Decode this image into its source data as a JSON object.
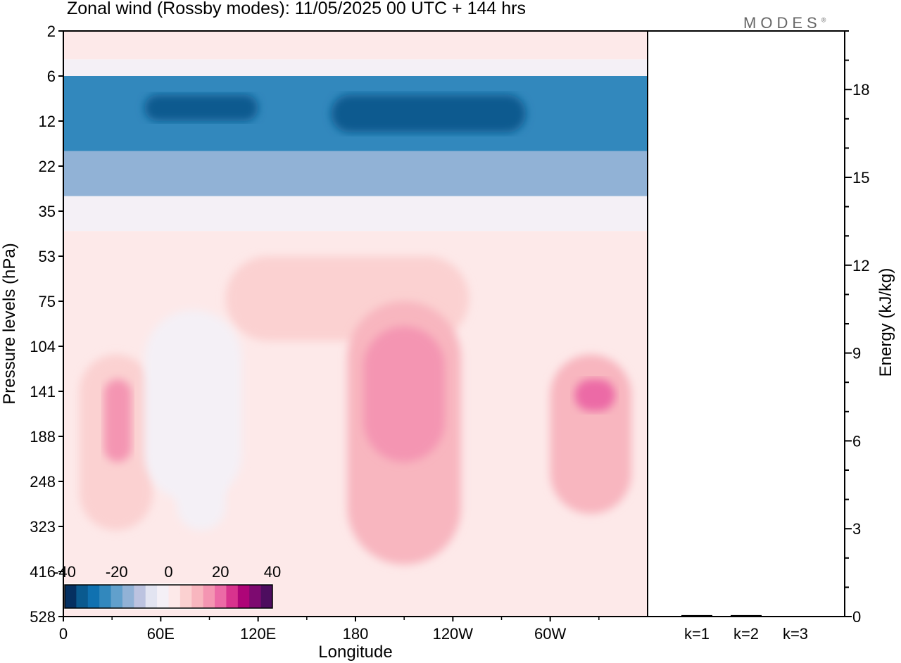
{
  "figure": {
    "title": "Zonal wind (Rossby modes):  11/05/2025  00 UTC  + 144 hrs",
    "brand": "MODES",
    "brand_mark": "®"
  },
  "chart_data": [
    {
      "type": "heatmap",
      "xlabel": "Longitude",
      "ylabel": "Pressure levels (hPa)",
      "x_ticks": [
        "0",
        "60E",
        "120E",
        "180",
        "120W",
        "60W"
      ],
      "x_tick_values": [
        0,
        60,
        120,
        180,
        240,
        300
      ],
      "xlim": [
        0,
        360
      ],
      "y_ticks": [
        "2",
        "6",
        "12",
        "22",
        "35",
        "53",
        "75",
        "104",
        "141",
        "188",
        "248",
        "323",
        "416",
        "528"
      ],
      "y_scale": "pressure levels, equally spaced, top = 2 hPa",
      "colorbar": {
        "tick_labels": [
          "-40",
          "-20",
          "0",
          "20",
          "40"
        ],
        "tick_values": [
          -40,
          -20,
          0,
          20,
          40
        ],
        "colors": [
          "#053061",
          "#0a5a8f",
          "#1071b0",
          "#3288bd",
          "#61a0cc",
          "#91b2d6",
          "#bcc3e0",
          "#e2e4f1",
          "#f4f0f6",
          "#fde9e9",
          "#fbd1d1",
          "#f8b6bf",
          "#f495b2",
          "#ec6aa6",
          "#d8338e",
          "#ae0578",
          "#7d0a70",
          "#4d0d5f"
        ]
      },
      "zones": [
        {
          "lon": [
            0,
            360
          ],
          "p": [
            2,
            4
          ],
          "value": 4
        },
        {
          "lon": [
            0,
            360
          ],
          "p": [
            4,
            6
          ],
          "value": -4
        },
        {
          "lon": [
            0,
            360
          ],
          "p": [
            6,
            18
          ],
          "value": -26
        },
        {
          "lon": [
            50,
            120
          ],
          "p": [
            8,
            12
          ],
          "value": -32
        },
        {
          "lon": [
            165,
            285
          ],
          "p": [
            8,
            14
          ],
          "value": -32
        },
        {
          "lon": [
            0,
            360
          ],
          "p": [
            18,
            30
          ],
          "value": -16
        },
        {
          "lon": [
            0,
            360
          ],
          "p": [
            30,
            42
          ],
          "value": -4
        },
        {
          "lon": [
            0,
            360
          ],
          "p": [
            42,
            528
          ],
          "value": 2
        },
        {
          "lon": [
            100,
            250
          ],
          "p": [
            53,
            100
          ],
          "value": 6
        },
        {
          "lon": [
            175,
            245
          ],
          "p": [
            75,
            400
          ],
          "value": 10
        },
        {
          "lon": [
            185,
            235
          ],
          "p": [
            90,
            220
          ],
          "value": 14
        },
        {
          "lon": [
            10,
            55
          ],
          "p": [
            110,
            330
          ],
          "value": 8
        },
        {
          "lon": [
            25,
            42
          ],
          "p": [
            130,
            220
          ],
          "value": 14
        },
        {
          "lon": [
            50,
            110
          ],
          "p": [
            80,
            280
          ],
          "value": -2
        },
        {
          "lon": [
            70,
            100
          ],
          "p": [
            100,
            330
          ],
          "value": -4
        },
        {
          "lon": [
            300,
            350
          ],
          "p": [
            110,
            300
          ],
          "value": 12
        },
        {
          "lon": [
            315,
            340
          ],
          "p": [
            130,
            160
          ],
          "value": 22
        }
      ]
    },
    {
      "type": "bar",
      "categories": [
        "k=1",
        "k=2",
        "k=3"
      ],
      "values": [
        0.05,
        0.05,
        0.02
      ],
      "ylabel": "Energy (kJ/kg)",
      "ylim": [
        0,
        20
      ],
      "y_ticks": [
        "0",
        "3",
        "6",
        "9",
        "12",
        "15",
        "18"
      ],
      "y_tick_values": [
        0,
        3,
        6,
        9,
        12,
        15,
        18
      ]
    }
  ]
}
